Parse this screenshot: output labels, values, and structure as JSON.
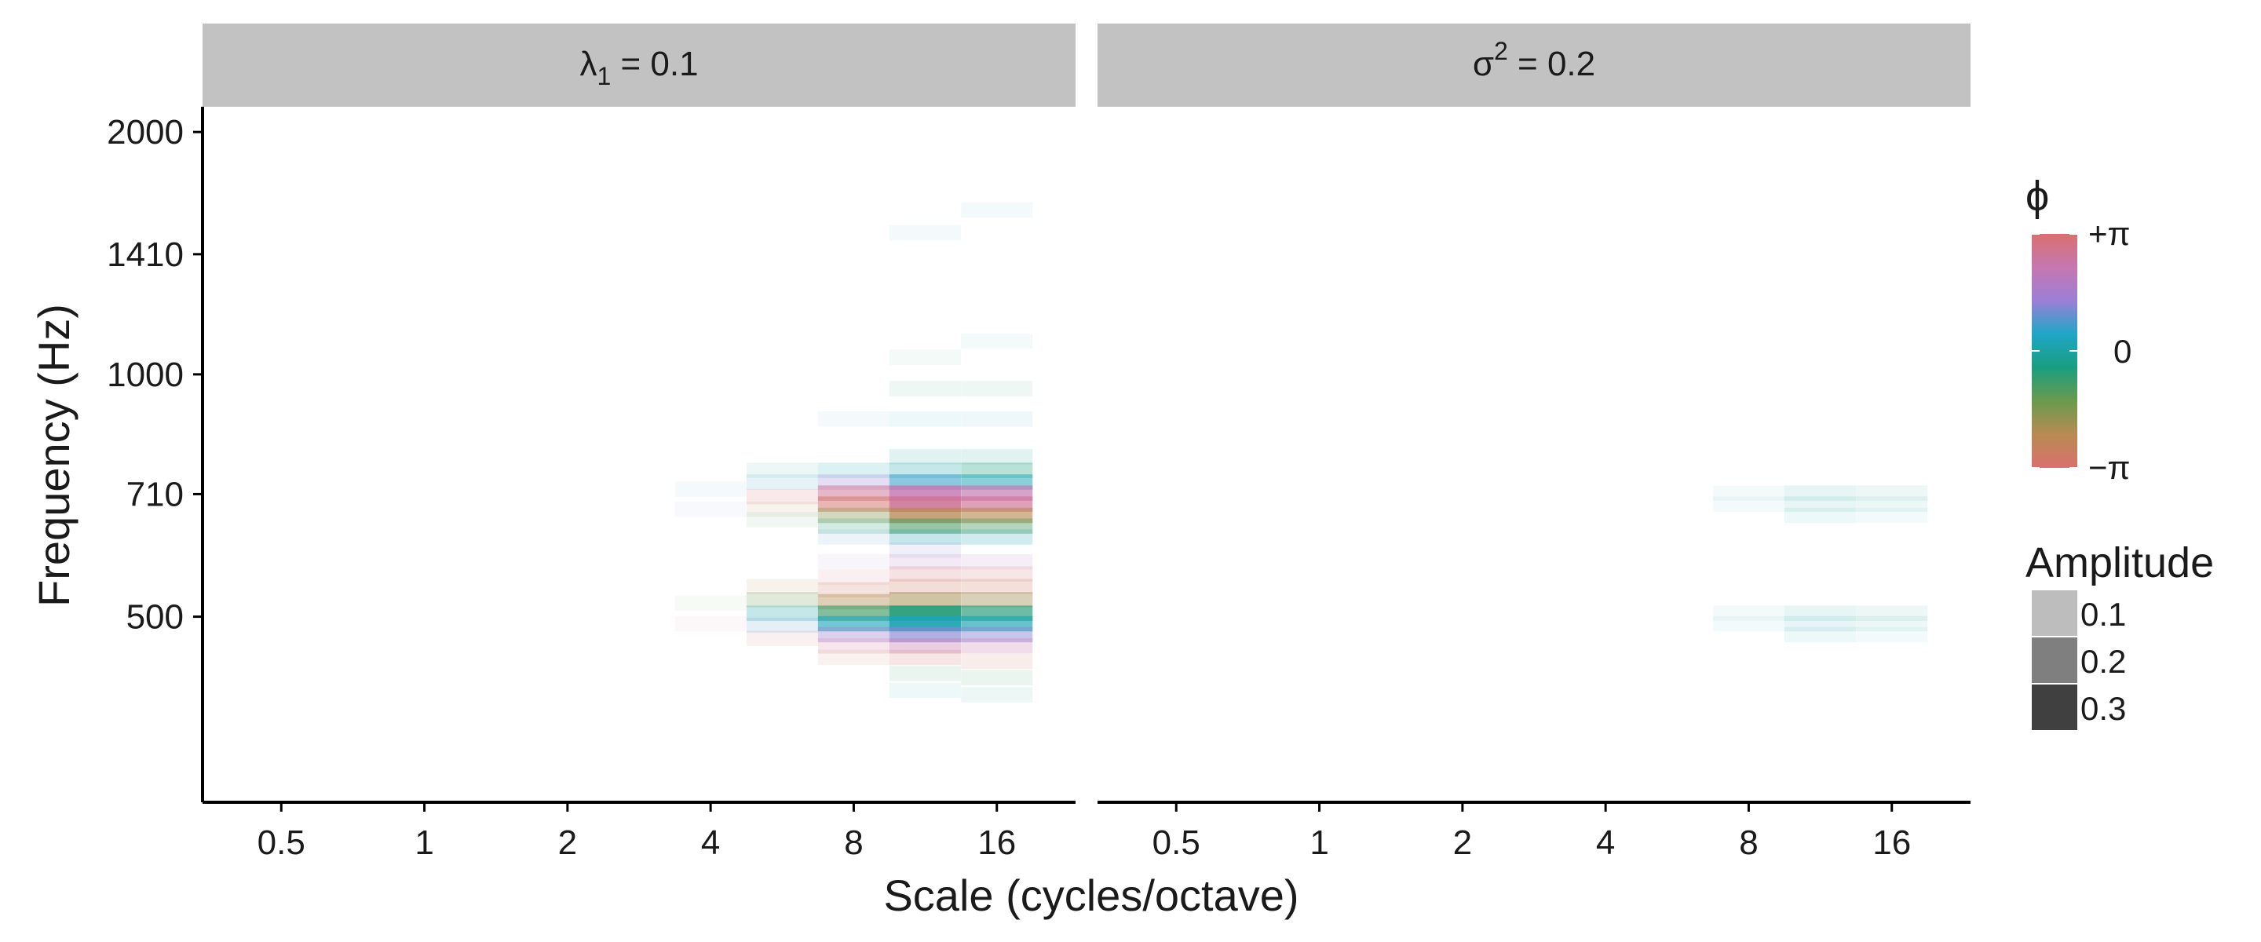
{
  "chart_data": {
    "type": "heatmap",
    "xlabel": "Scale (cycles/octave)",
    "ylabel": "Frequency (Hz)",
    "x_ticks": [
      "0.5",
      "1",
      "2",
      "4",
      "8",
      "16"
    ],
    "x_log2_range": [
      -1.55,
      4.55
    ],
    "y_ticks": [
      {
        "value": 2000,
        "label": "2000"
      },
      {
        "value": 1410,
        "label": "1410"
      },
      {
        "value": 1000,
        "label": "1000"
      },
      {
        "value": 710,
        "label": "710"
      },
      {
        "value": 500,
        "label": "500"
      }
    ],
    "y_log2_range": [
      8.2,
      11.07
    ],
    "grid": false,
    "panels": [
      {
        "label_main": "λ",
        "label_sub": "1",
        "label_sup": "",
        "label_rest": " = 0.1",
        "cells": [
          {
            "scale": 4,
            "freq": 720,
            "phase": 0.4,
            "amp": 0.02
          },
          {
            "scale": 4,
            "freq": 680,
            "phase": 0.9,
            "amp": 0.02
          },
          {
            "scale": 4,
            "freq": 520,
            "phase": -1.2,
            "amp": 0.02
          },
          {
            "scale": 4,
            "freq": 490,
            "phase": 2.5,
            "amp": 0.02
          },
          {
            "scale": 5.66,
            "freq": 760,
            "phase": -0.5,
            "amp": 0.03
          },
          {
            "scale": 5.66,
            "freq": 735,
            "phase": 0.6,
            "amp": 0.05
          },
          {
            "scale": 5.66,
            "freq": 705,
            "phase": 3.0,
            "amp": 0.06
          },
          {
            "scale": 5.66,
            "freq": 680,
            "phase": -2.2,
            "amp": 0.04
          },
          {
            "scale": 5.66,
            "freq": 660,
            "phase": -1.0,
            "amp": 0.03
          },
          {
            "scale": 5.66,
            "freq": 545,
            "phase": -2.4,
            "amp": 0.04
          },
          {
            "scale": 5.66,
            "freq": 525,
            "phase": -1.3,
            "amp": 0.08
          },
          {
            "scale": 5.66,
            "freq": 505,
            "phase": 0.1,
            "amp": 0.1
          },
          {
            "scale": 5.66,
            "freq": 488,
            "phase": 0.8,
            "amp": 0.06
          },
          {
            "scale": 5.66,
            "freq": 470,
            "phase": 2.8,
            "amp": 0.04
          },
          {
            "scale": 8,
            "freq": 880,
            "phase": 0.5,
            "amp": 0.02
          },
          {
            "scale": 8,
            "freq": 760,
            "phase": 0.3,
            "amp": 0.06
          },
          {
            "scale": 8,
            "freq": 735,
            "phase": 1.3,
            "amp": 0.1
          },
          {
            "scale": 8,
            "freq": 712,
            "phase": 2.6,
            "amp": 0.2
          },
          {
            "scale": 8,
            "freq": 690,
            "phase": -3.0,
            "amp": 0.2
          },
          {
            "scale": 8,
            "freq": 668,
            "phase": -1.7,
            "amp": 0.14
          },
          {
            "scale": 8,
            "freq": 648,
            "phase": -0.6,
            "amp": 0.08
          },
          {
            "scale": 8,
            "freq": 628,
            "phase": 0.8,
            "amp": 0.04
          },
          {
            "scale": 8,
            "freq": 585,
            "phase": 1.5,
            "amp": 0.03
          },
          {
            "scale": 8,
            "freq": 560,
            "phase": 2.8,
            "amp": 0.04
          },
          {
            "scale": 8,
            "freq": 540,
            "phase": -2.9,
            "amp": 0.08
          },
          {
            "scale": 8,
            "freq": 522,
            "phase": -2.2,
            "amp": 0.16
          },
          {
            "scale": 8,
            "freq": 505,
            "phase": -0.9,
            "amp": 0.25
          },
          {
            "scale": 8,
            "freq": 490,
            "phase": 0.3,
            "amp": 0.24
          },
          {
            "scale": 8,
            "freq": 475,
            "phase": 1.4,
            "amp": 0.14
          },
          {
            "scale": 8,
            "freq": 460,
            "phase": 2.7,
            "amp": 0.07
          },
          {
            "scale": 8,
            "freq": 445,
            "phase": -2.6,
            "amp": 0.04
          },
          {
            "scale": 11.31,
            "freq": 1500,
            "phase": 0.2,
            "amp": 0.02
          },
          {
            "scale": 11.31,
            "freq": 1050,
            "phase": -0.5,
            "amp": 0.02
          },
          {
            "scale": 11.31,
            "freq": 960,
            "phase": -0.6,
            "amp": 0.03
          },
          {
            "scale": 11.31,
            "freq": 880,
            "phase": 0.4,
            "amp": 0.03
          },
          {
            "scale": 11.31,
            "freq": 790,
            "phase": -0.3,
            "amp": 0.05
          },
          {
            "scale": 11.31,
            "freq": 760,
            "phase": 0.1,
            "amp": 0.1
          },
          {
            "scale": 11.31,
            "freq": 735,
            "phase": 0.6,
            "amp": 0.22
          },
          {
            "scale": 11.31,
            "freq": 712,
            "phase": 2.2,
            "amp": 0.32
          },
          {
            "scale": 11.31,
            "freq": 690,
            "phase": 2.6,
            "amp": 0.34
          },
          {
            "scale": 11.31,
            "freq": 668,
            "phase": -2.3,
            "amp": 0.3
          },
          {
            "scale": 11.31,
            "freq": 648,
            "phase": -1.0,
            "amp": 0.22
          },
          {
            "scale": 11.31,
            "freq": 628,
            "phase": 0.2,
            "amp": 0.1
          },
          {
            "scale": 11.31,
            "freq": 605,
            "phase": 1.3,
            "amp": 0.05
          },
          {
            "scale": 11.31,
            "freq": 585,
            "phase": 1.9,
            "amp": 0.06
          },
          {
            "scale": 11.31,
            "freq": 565,
            "phase": 2.9,
            "amp": 0.08
          },
          {
            "scale": 11.31,
            "freq": 545,
            "phase": -2.8,
            "amp": 0.1
          },
          {
            "scale": 11.31,
            "freq": 525,
            "phase": -2.0,
            "amp": 0.2
          },
          {
            "scale": 11.31,
            "freq": 505,
            "phase": -0.6,
            "amp": 0.36
          },
          {
            "scale": 11.31,
            "freq": 490,
            "phase": 0.2,
            "amp": 0.36
          },
          {
            "scale": 11.31,
            "freq": 475,
            "phase": 1.2,
            "amp": 0.25
          },
          {
            "scale": 11.31,
            "freq": 460,
            "phase": 2.3,
            "amp": 0.14
          },
          {
            "scale": 11.31,
            "freq": 445,
            "phase": -2.9,
            "amp": 0.07
          },
          {
            "scale": 11.31,
            "freq": 425,
            "phase": -0.8,
            "amp": 0.04
          },
          {
            "scale": 11.31,
            "freq": 405,
            "phase": 0.1,
            "amp": 0.03
          },
          {
            "scale": 16,
            "freq": 1600,
            "phase": 0.3,
            "amp": 0.02
          },
          {
            "scale": 16,
            "freq": 1100,
            "phase": -0.4,
            "amp": 0.02
          },
          {
            "scale": 16,
            "freq": 960,
            "phase": -0.7,
            "amp": 0.03
          },
          {
            "scale": 16,
            "freq": 880,
            "phase": 0.5,
            "amp": 0.03
          },
          {
            "scale": 16,
            "freq": 790,
            "phase": -0.2,
            "amp": 0.05
          },
          {
            "scale": 16,
            "freq": 760,
            "phase": -0.5,
            "amp": 0.12
          },
          {
            "scale": 16,
            "freq": 735,
            "phase": 0.3,
            "amp": 0.2
          },
          {
            "scale": 16,
            "freq": 712,
            "phase": 2.2,
            "amp": 0.26
          },
          {
            "scale": 16,
            "freq": 690,
            "phase": 2.6,
            "amp": 0.26
          },
          {
            "scale": 16,
            "freq": 668,
            "phase": -2.3,
            "amp": 0.24
          },
          {
            "scale": 16,
            "freq": 648,
            "phase": -1.0,
            "amp": 0.16
          },
          {
            "scale": 16,
            "freq": 628,
            "phase": 0.2,
            "amp": 0.08
          },
          {
            "scale": 16,
            "freq": 585,
            "phase": 1.9,
            "amp": 0.05
          },
          {
            "scale": 16,
            "freq": 565,
            "phase": 2.9,
            "amp": 0.07
          },
          {
            "scale": 16,
            "freq": 545,
            "phase": -2.8,
            "amp": 0.09
          },
          {
            "scale": 16,
            "freq": 525,
            "phase": -2.0,
            "amp": 0.16
          },
          {
            "scale": 16,
            "freq": 505,
            "phase": -0.6,
            "amp": 0.26
          },
          {
            "scale": 16,
            "freq": 490,
            "phase": 0.2,
            "amp": 0.26
          },
          {
            "scale": 16,
            "freq": 475,
            "phase": 1.2,
            "amp": 0.18
          },
          {
            "scale": 16,
            "freq": 460,
            "phase": 2.3,
            "amp": 0.1
          },
          {
            "scale": 16,
            "freq": 440,
            "phase": -2.9,
            "amp": 0.05
          },
          {
            "scale": 16,
            "freq": 420,
            "phase": -0.8,
            "amp": 0.04
          },
          {
            "scale": 16,
            "freq": 400,
            "phase": -0.3,
            "amp": 0.03
          }
        ]
      },
      {
        "label_main": "σ",
        "label_sub": "",
        "label_sup": "2",
        "label_rest": " = 0.2",
        "cells": [
          {
            "scale": 8,
            "freq": 712,
            "phase": -0.3,
            "amp": 0.02
          },
          {
            "scale": 8,
            "freq": 690,
            "phase": 0.2,
            "amp": 0.02
          },
          {
            "scale": 8,
            "freq": 505,
            "phase": -0.2,
            "amp": 0.02
          },
          {
            "scale": 8,
            "freq": 490,
            "phase": 0.1,
            "amp": 0.02
          },
          {
            "scale": 11.31,
            "freq": 712,
            "phase": -0.2,
            "amp": 0.04
          },
          {
            "scale": 11.31,
            "freq": 690,
            "phase": -0.1,
            "amp": 0.04
          },
          {
            "scale": 11.31,
            "freq": 668,
            "phase": 0.2,
            "amp": 0.03
          },
          {
            "scale": 11.31,
            "freq": 505,
            "phase": -0.1,
            "amp": 0.04
          },
          {
            "scale": 11.31,
            "freq": 490,
            "phase": 0.1,
            "amp": 0.04
          },
          {
            "scale": 11.31,
            "freq": 475,
            "phase": 0.2,
            "amp": 0.03
          },
          {
            "scale": 16,
            "freq": 712,
            "phase": -0.4,
            "amp": 0.03
          },
          {
            "scale": 16,
            "freq": 690,
            "phase": -0.3,
            "amp": 0.03
          },
          {
            "scale": 16,
            "freq": 668,
            "phase": 0.1,
            "amp": 0.02
          },
          {
            "scale": 16,
            "freq": 505,
            "phase": -0.4,
            "amp": 0.03
          },
          {
            "scale": 16,
            "freq": 490,
            "phase": -0.3,
            "amp": 0.03
          },
          {
            "scale": 16,
            "freq": 475,
            "phase": 0.1,
            "amp": 0.02
          }
        ]
      }
    ],
    "legend_phase": {
      "title": "ϕ",
      "labels": [
        "+π",
        "0",
        "−π"
      ],
      "stops": [
        "#d97070",
        "#c677b0",
        "#9b7fd6",
        "#1fa6c6",
        "#1a9e80",
        "#6a9a4e",
        "#b88b52",
        "#d97070"
      ]
    },
    "legend_amplitude": {
      "title": "Amplitude",
      "entries": [
        {
          "label": "0.1",
          "value": 0.1,
          "color": "#bdbdbd"
        },
        {
          "label": "0.2",
          "value": 0.2,
          "color": "#7f7f7f"
        },
        {
          "label": "0.3",
          "value": 0.3,
          "color": "#404040"
        }
      ]
    },
    "colors": {
      "strip": "#c2c2c2",
      "axis": "#000000",
      "text": "#1a1a1a"
    }
  }
}
